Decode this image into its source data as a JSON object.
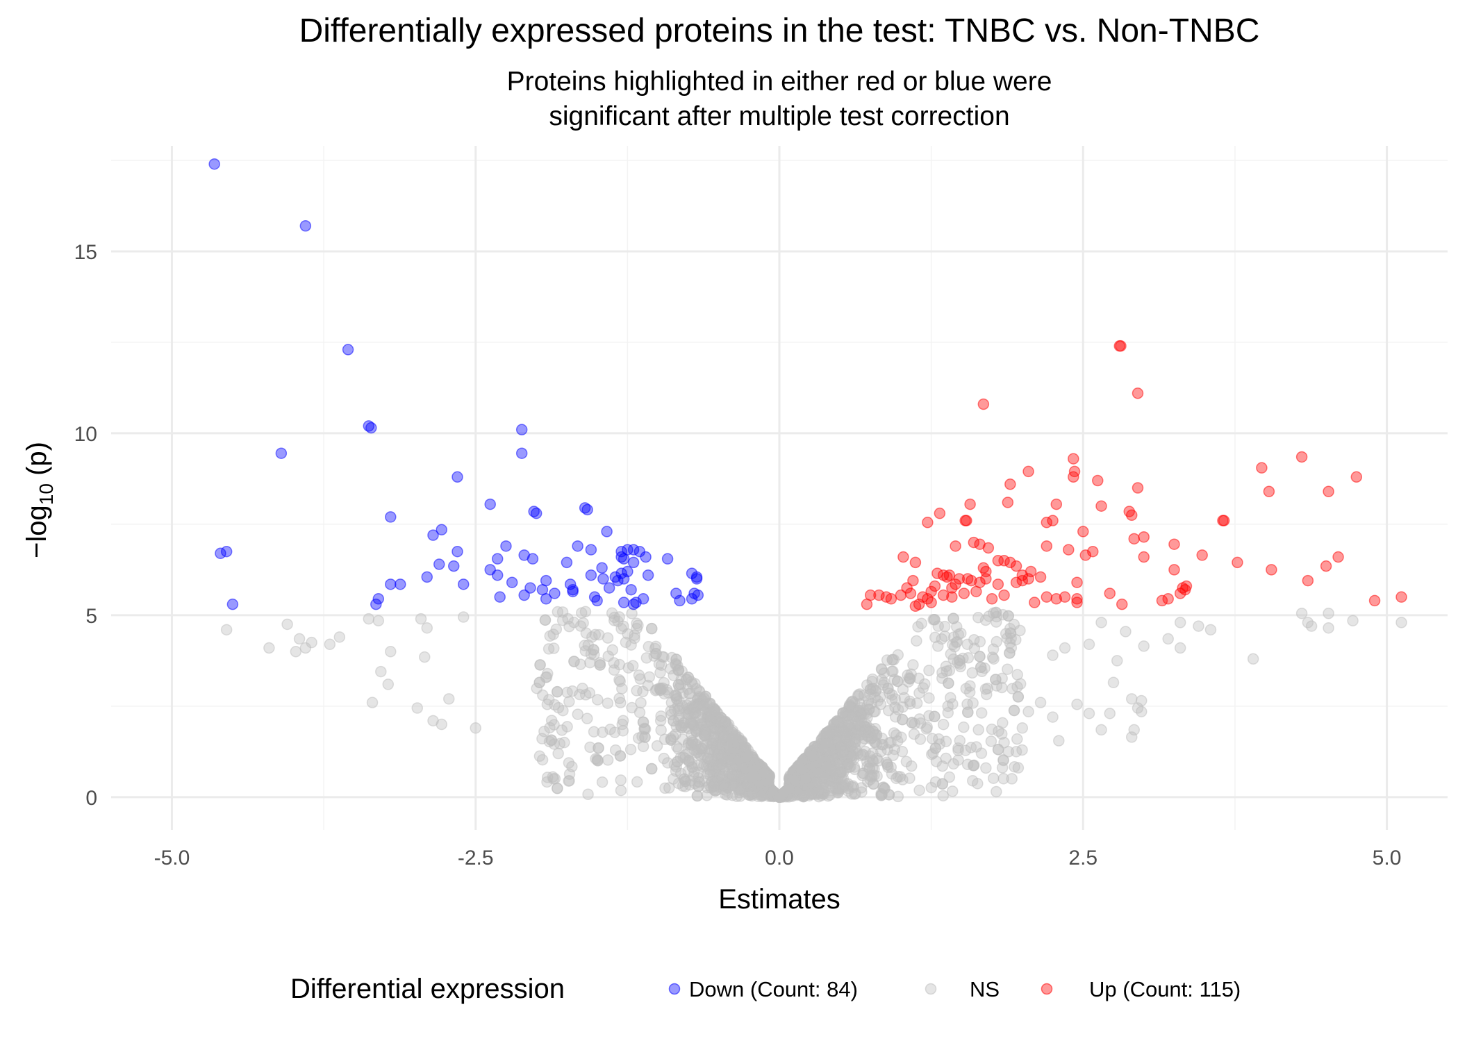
{
  "chart_data": {
    "type": "scatter",
    "title": "Differentially expressed proteins in the test: TNBC vs. Non-TNBC",
    "subtitle_lines": [
      "Proteins highlighted in either red or blue were",
      "significant after multiple test correction"
    ],
    "xlabel": "Estimates",
    "ylabel_prefix": "−log",
    "ylabel_sub": "10",
    "ylabel_suffix": " (p)",
    "xlim": [
      -5.5,
      5.5
    ],
    "ylim": [
      -0.9,
      17.9
    ],
    "x_ticks": [
      -5,
      -2.5,
      0,
      2.5,
      5
    ],
    "x_tick_labels": [
      "-5.0",
      "-2.5",
      "0.0",
      "2.5",
      "5.0"
    ],
    "y_ticks": [
      0,
      5,
      10,
      15
    ],
    "y_tick_labels": [
      "0",
      "5",
      "10",
      "15"
    ],
    "grid": true,
    "legend": {
      "position": "bottom",
      "title": "Differential expression",
      "entries": [
        {
          "label": "Down (Count: 84)",
          "color": "#0000ff"
        },
        {
          "label": "NS",
          "color": "#bebebe"
        },
        {
          "label": "Up (Count: 115)",
          "color": "#ff0000"
        }
      ]
    },
    "series": [
      {
        "name": "Down (Count: 84)",
        "color": "#0000ff",
        "points": [
          [
            -4.65,
            17.4
          ],
          [
            -3.9,
            15.7
          ],
          [
            -3.55,
            12.3
          ],
          [
            -3.38,
            10.2
          ],
          [
            -3.36,
            10.15
          ],
          [
            -4.1,
            9.45
          ],
          [
            -4.6,
            6.7
          ],
          [
            -4.55,
            6.75
          ],
          [
            -4.5,
            5.3
          ],
          [
            -3.2,
            7.7
          ],
          [
            -3.2,
            5.85
          ],
          [
            -3.12,
            5.85
          ],
          [
            -3.3,
            5.45
          ],
          [
            -3.32,
            5.3
          ],
          [
            -2.85,
            7.2
          ],
          [
            -2.78,
            7.35
          ],
          [
            -2.65,
            8.8
          ],
          [
            -2.65,
            6.75
          ],
          [
            -2.8,
            6.4
          ],
          [
            -2.68,
            6.35
          ],
          [
            -2.9,
            6.05
          ],
          [
            -2.6,
            5.85
          ],
          [
            -2.38,
            8.05
          ],
          [
            -2.25,
            6.9
          ],
          [
            -2.32,
            6.55
          ],
          [
            -2.38,
            6.25
          ],
          [
            -2.32,
            6.1
          ],
          [
            -2.3,
            5.5
          ],
          [
            -2.12,
            10.1
          ],
          [
            -2.12,
            9.45
          ],
          [
            -2.02,
            7.85
          ],
          [
            -2.0,
            7.8
          ],
          [
            -2.1,
            6.65
          ],
          [
            -2.03,
            6.55
          ],
          [
            -2.05,
            5.75
          ],
          [
            -2.1,
            5.55
          ],
          [
            -1.92,
            5.95
          ],
          [
            -1.95,
            5.7
          ],
          [
            -1.92,
            5.45
          ],
          [
            -1.75,
            6.45
          ],
          [
            -1.66,
            6.9
          ],
          [
            -1.55,
            6.8
          ],
          [
            -1.72,
            5.85
          ],
          [
            -1.7,
            5.7
          ],
          [
            -1.7,
            5.65
          ],
          [
            -1.55,
            6.1
          ],
          [
            -1.45,
            6.0
          ],
          [
            -1.52,
            5.5
          ],
          [
            -1.5,
            5.4
          ],
          [
            -1.6,
            7.95
          ],
          [
            -1.58,
            7.9
          ],
          [
            -1.42,
            7.3
          ],
          [
            -1.3,
            6.75
          ],
          [
            -1.2,
            6.8
          ],
          [
            -1.25,
            6.8
          ],
          [
            -1.3,
            6.6
          ],
          [
            -1.28,
            6.55
          ],
          [
            -1.15,
            6.75
          ],
          [
            -1.1,
            6.6
          ],
          [
            -1.2,
            6.45
          ],
          [
            -1.25,
            6.2
          ],
          [
            -1.3,
            6.15
          ],
          [
            -1.35,
            6.05
          ],
          [
            -1.28,
            6.0
          ],
          [
            -1.33,
            5.95
          ],
          [
            -1.08,
            6.1
          ],
          [
            -1.22,
            5.7
          ],
          [
            -1.28,
            5.35
          ],
          [
            -1.2,
            5.3
          ],
          [
            -1.12,
            5.45
          ],
          [
            -0.92,
            6.55
          ],
          [
            -0.85,
            5.6
          ],
          [
            -0.82,
            5.4
          ],
          [
            -0.72,
            6.15
          ],
          [
            -0.68,
            6.05
          ],
          [
            -0.68,
            6.0
          ],
          [
            -0.7,
            5.6
          ],
          [
            -0.67,
            5.55
          ],
          [
            -0.72,
            5.45
          ],
          [
            -1.4,
            5.75
          ],
          [
            -1.18,
            5.35
          ],
          [
            -1.46,
            6.3
          ],
          [
            -1.85,
            5.6
          ],
          [
            -2.2,
            5.9
          ]
        ]
      },
      {
        "name": "Up (Count: 115)",
        "color": "#ff0000",
        "points": [
          [
            2.8,
            12.4
          ],
          [
            2.81,
            12.4
          ],
          [
            2.95,
            11.1
          ],
          [
            1.68,
            10.8
          ],
          [
            2.42,
            9.3
          ],
          [
            2.43,
            8.95
          ],
          [
            2.42,
            8.8
          ],
          [
            2.05,
            8.95
          ],
          [
            1.9,
            8.6
          ],
          [
            1.88,
            8.1
          ],
          [
            1.57,
            8.05
          ],
          [
            1.53,
            7.6
          ],
          [
            1.54,
            7.6
          ],
          [
            1.32,
            7.8
          ],
          [
            1.22,
            7.55
          ],
          [
            2.2,
            7.55
          ],
          [
            2.25,
            7.6
          ],
          [
            2.28,
            8.05
          ],
          [
            2.62,
            8.7
          ],
          [
            2.65,
            8.0
          ],
          [
            2.88,
            7.85
          ],
          [
            2.9,
            7.75
          ],
          [
            2.5,
            7.3
          ],
          [
            2.92,
            7.1
          ],
          [
            3.0,
            7.15
          ],
          [
            1.6,
            7.0
          ],
          [
            1.65,
            6.95
          ],
          [
            1.72,
            6.85
          ],
          [
            1.45,
            6.9
          ],
          [
            2.2,
            6.9
          ],
          [
            2.38,
            6.8
          ],
          [
            2.52,
            6.65
          ],
          [
            2.58,
            6.75
          ],
          [
            1.8,
            6.5
          ],
          [
            1.85,
            6.5
          ],
          [
            1.9,
            6.45
          ],
          [
            2.0,
            6.1
          ],
          [
            2.07,
            6.2
          ],
          [
            2.05,
            6.0
          ],
          [
            3.0,
            6.6
          ],
          [
            3.25,
            6.95
          ],
          [
            3.48,
            6.65
          ],
          [
            3.25,
            6.25
          ],
          [
            1.02,
            6.6
          ],
          [
            1.12,
            6.45
          ],
          [
            1.35,
            6.1
          ],
          [
            1.38,
            6.05
          ],
          [
            1.4,
            6.1
          ],
          [
            1.3,
            6.15
          ],
          [
            1.48,
            6.0
          ],
          [
            1.55,
            6.0
          ],
          [
            1.68,
            6.3
          ],
          [
            1.7,
            6.2
          ],
          [
            1.7,
            6.0
          ],
          [
            1.65,
            5.9
          ],
          [
            1.58,
            5.95
          ],
          [
            1.52,
            5.6
          ],
          [
            1.8,
            5.85
          ],
          [
            1.85,
            5.55
          ],
          [
            1.95,
            5.9
          ],
          [
            2.0,
            5.95
          ],
          [
            2.1,
            5.35
          ],
          [
            2.2,
            5.5
          ],
          [
            2.28,
            5.45
          ],
          [
            2.35,
            5.5
          ],
          [
            2.45,
            5.9
          ],
          [
            2.45,
            5.45
          ],
          [
            2.45,
            5.35
          ],
          [
            2.72,
            5.6
          ],
          [
            2.82,
            5.3
          ],
          [
            3.15,
            5.4
          ],
          [
            3.3,
            5.6
          ],
          [
            3.32,
            5.75
          ],
          [
            3.35,
            5.8
          ],
          [
            3.34,
            5.7
          ],
          [
            3.65,
            7.6
          ],
          [
            3.66,
            7.6
          ],
          [
            3.77,
            6.45
          ],
          [
            3.97,
            9.05
          ],
          [
            4.03,
            8.4
          ],
          [
            4.3,
            9.35
          ],
          [
            4.52,
            8.4
          ],
          [
            4.75,
            8.8
          ],
          [
            4.05,
            6.25
          ],
          [
            4.35,
            5.95
          ],
          [
            4.5,
            6.35
          ],
          [
            4.6,
            6.6
          ],
          [
            4.9,
            5.4
          ],
          [
            5.12,
            5.5
          ],
          [
            0.72,
            5.3
          ],
          [
            0.75,
            5.55
          ],
          [
            0.82,
            5.55
          ],
          [
            0.92,
            5.45
          ],
          [
            1.0,
            5.55
          ],
          [
            1.05,
            5.75
          ],
          [
            1.08,
            5.6
          ],
          [
            1.1,
            5.95
          ],
          [
            1.15,
            5.3
          ],
          [
            1.18,
            5.5
          ],
          [
            1.22,
            5.45
          ],
          [
            1.25,
            5.35
          ],
          [
            1.28,
            5.8
          ],
          [
            1.35,
            5.55
          ],
          [
            1.42,
            5.75
          ],
          [
            1.45,
            5.85
          ],
          [
            0.88,
            5.5
          ],
          [
            1.12,
            5.25
          ],
          [
            2.95,
            8.5
          ],
          [
            1.95,
            6.35
          ],
          [
            1.42,
            5.5
          ],
          [
            1.62,
            5.65
          ],
          [
            3.2,
            5.45
          ],
          [
            2.15,
            6.05
          ],
          [
            1.25,
            5.65
          ],
          [
            1.75,
            5.45
          ]
        ]
      }
    ],
    "ns_series": {
      "name": "NS",
      "color": "#bebebe",
      "description_points": [
        [
          -4.2,
          4.1
        ],
        [
          -4.05,
          4.75
        ],
        [
          -3.95,
          4.35
        ],
        [
          -3.85,
          4.25
        ],
        [
          -3.9,
          4.1
        ],
        [
          -3.98,
          4.0
        ],
        [
          -3.62,
          4.4
        ],
        [
          -3.38,
          4.9
        ],
        [
          -3.3,
          4.85
        ],
        [
          -3.2,
          4.0
        ],
        [
          -3.22,
          3.1
        ],
        [
          -3.28,
          3.45
        ],
        [
          -3.35,
          2.6
        ],
        [
          -2.95,
          4.9
        ],
        [
          -2.9,
          4.65
        ],
        [
          -2.92,
          3.85
        ],
        [
          -2.6,
          4.95
        ],
        [
          -2.85,
          2.1
        ],
        [
          -2.98,
          2.45
        ],
        [
          -2.78,
          2.0
        ],
        [
          -2.72,
          2.7
        ],
        [
          -2.5,
          1.9
        ],
        [
          -4.55,
          4.6
        ],
        [
          -3.7,
          4.2
        ],
        [
          4.3,
          5.05
        ],
        [
          4.35,
          4.8
        ],
        [
          4.38,
          4.7
        ],
        [
          4.52,
          5.05
        ],
        [
          4.52,
          4.65
        ],
        [
          4.72,
          4.85
        ],
        [
          5.12,
          4.8
        ],
        [
          3.9,
          3.8
        ],
        [
          3.55,
          4.6
        ],
        [
          3.3,
          4.8
        ],
        [
          3.3,
          4.1
        ],
        [
          3.45,
          4.7
        ],
        [
          3.2,
          4.35
        ],
        [
          3.0,
          4.15
        ],
        [
          2.85,
          4.55
        ],
        [
          2.9,
          2.7
        ],
        [
          2.95,
          2.45
        ],
        [
          2.98,
          2.65
        ],
        [
          2.98,
          2.35
        ],
        [
          2.92,
          1.85
        ],
        [
          2.9,
          1.65
        ],
        [
          2.72,
          2.3
        ],
        [
          2.75,
          3.15
        ],
        [
          2.65,
          1.85
        ],
        [
          2.55,
          2.3
        ],
        [
          2.45,
          2.55
        ],
        [
          2.35,
          4.1
        ],
        [
          2.25,
          3.9
        ],
        [
          2.15,
          2.6
        ],
        [
          2.25,
          2.2
        ],
        [
          2.05,
          2.35
        ],
        [
          2.0,
          1.9
        ],
        [
          2.3,
          1.55
        ],
        [
          1.95,
          1.25
        ],
        [
          1.85,
          1.5
        ],
        [
          1.7,
          0.8
        ],
        [
          1.55,
          0.9
        ],
        [
          1.4,
          0.55
        ],
        [
          2.55,
          4.2
        ],
        [
          2.65,
          4.8
        ],
        [
          2.78,
          3.75
        ]
      ]
    }
  }
}
